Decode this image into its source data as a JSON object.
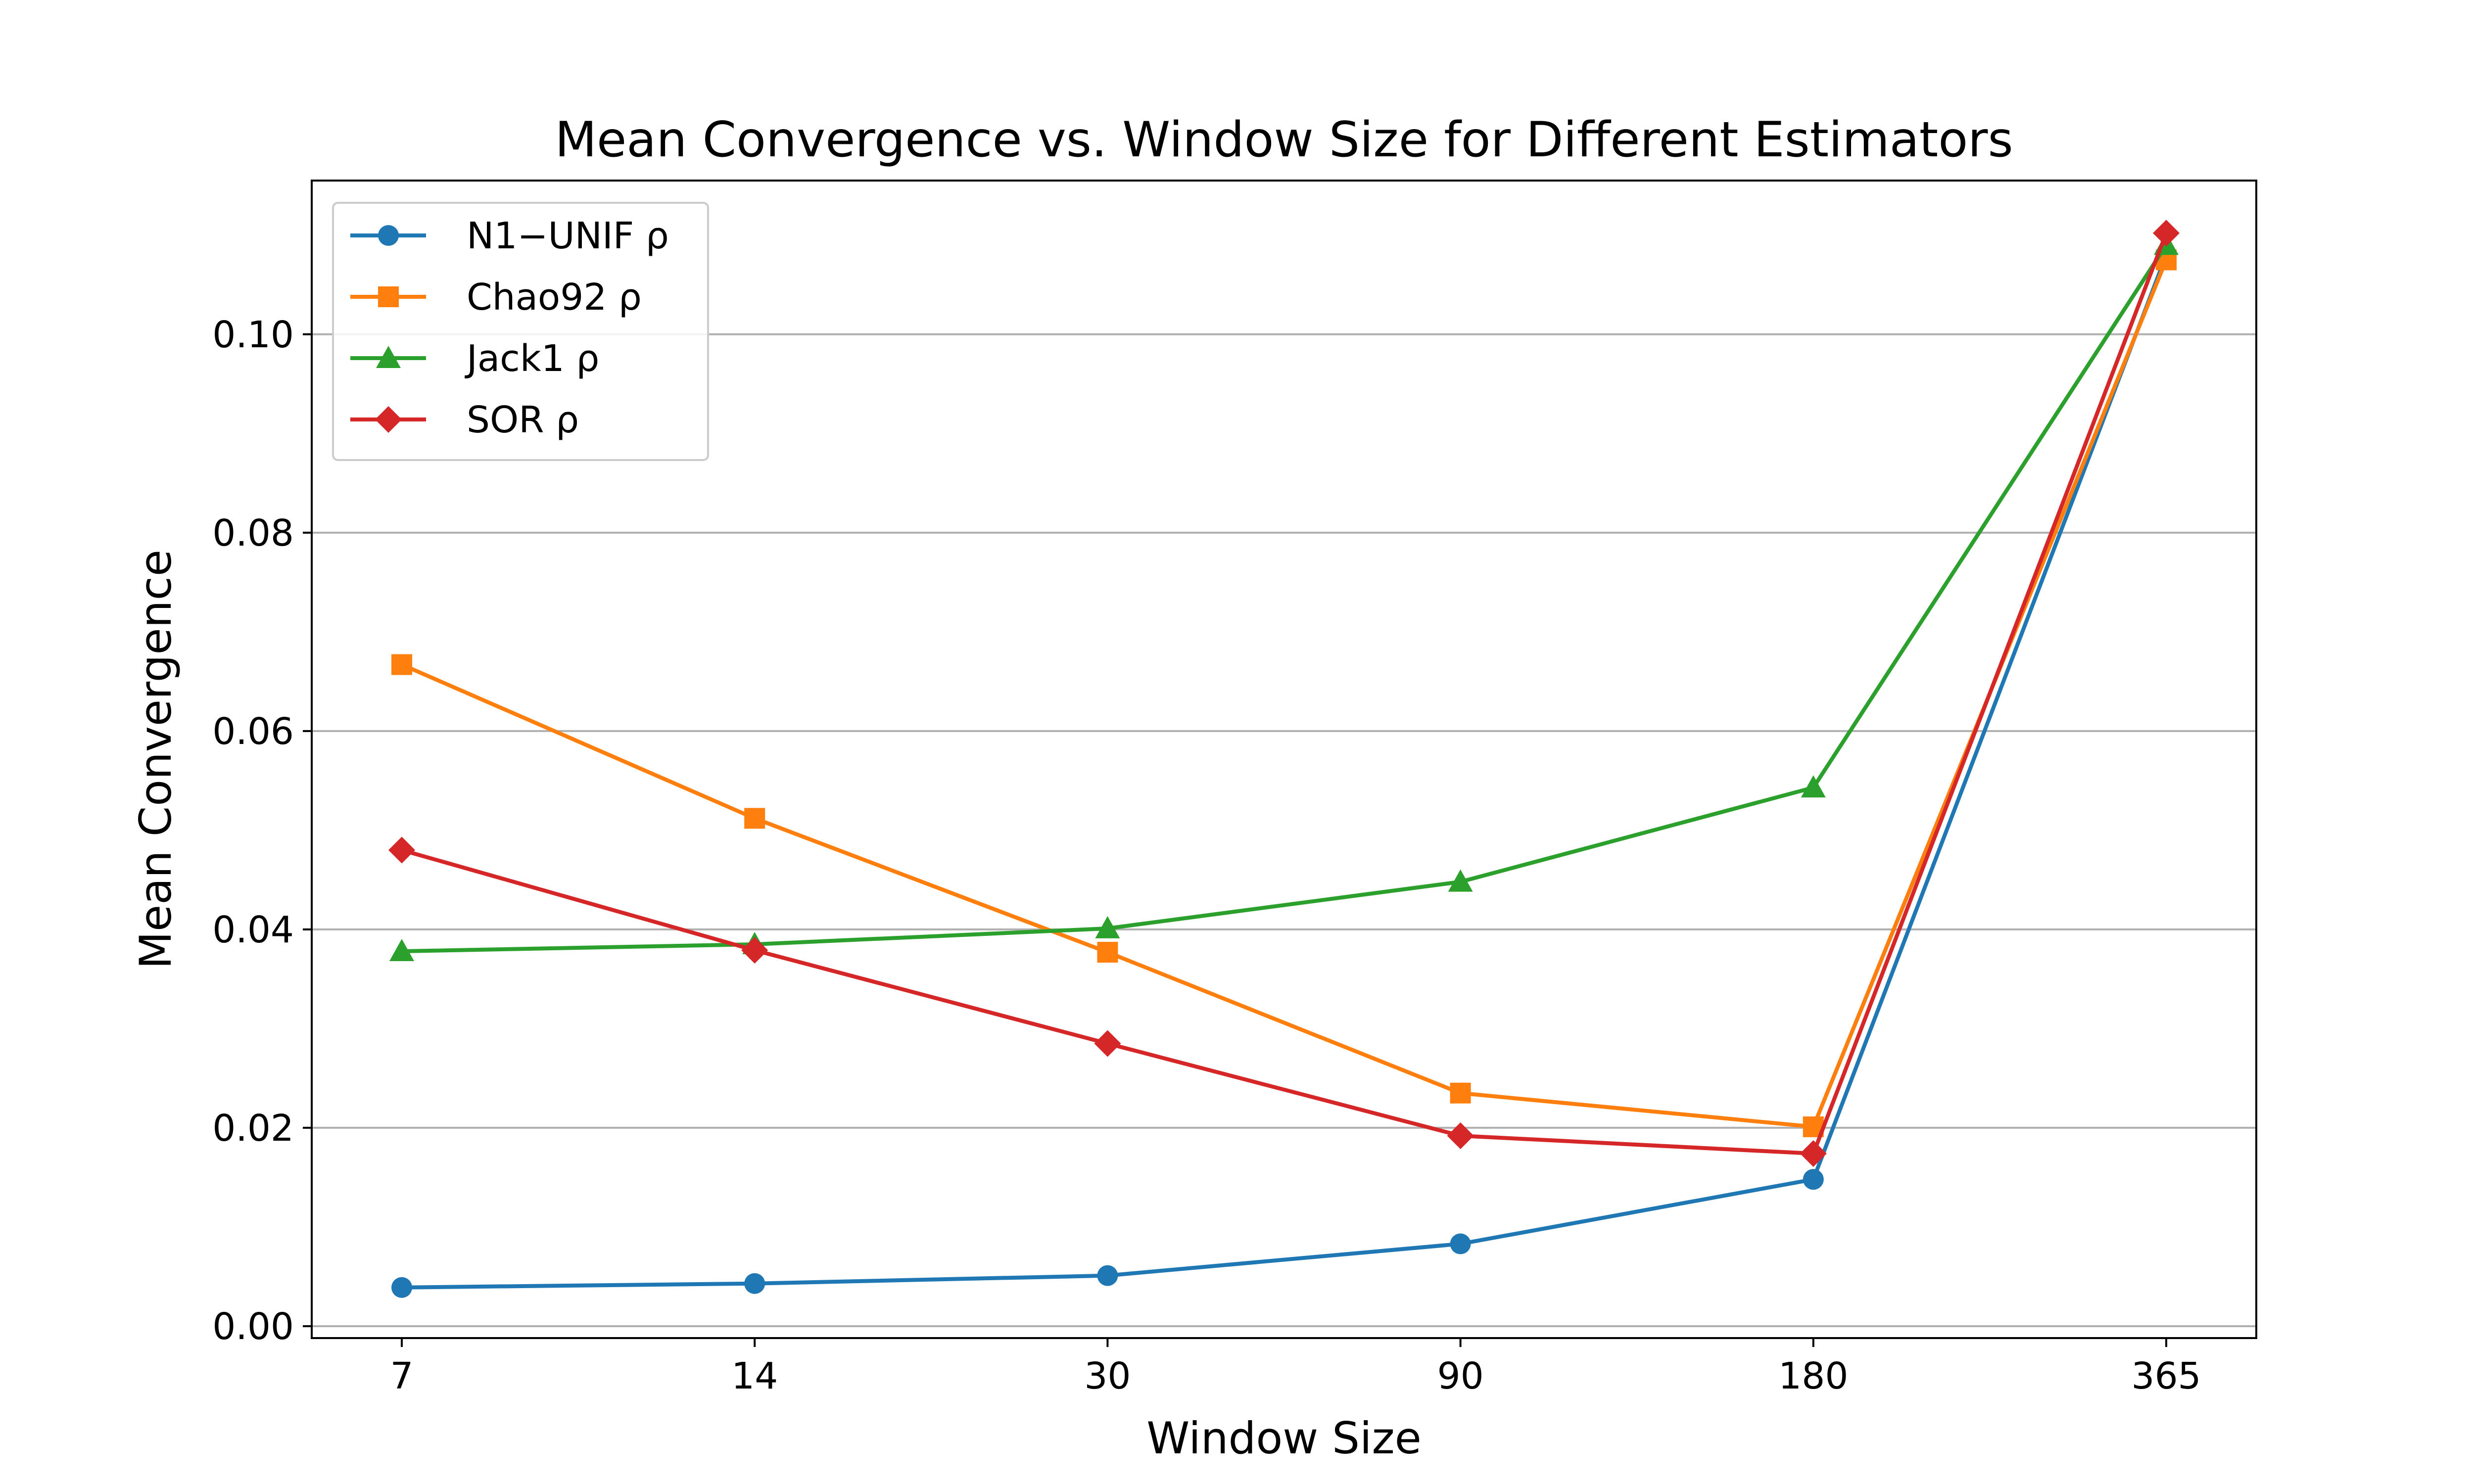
{
  "chart_data": {
    "type": "line",
    "title": "Mean Convergence vs. Window Size for Different Estimators",
    "xlabel": "Window Size",
    "ylabel": "Mean Convergence",
    "categories": [
      "7",
      "14",
      "30",
      "90",
      "180",
      "365"
    ],
    "ylim": [
      -0.0012,
      0.1155
    ],
    "yticks": [
      0.0,
      0.02,
      0.04,
      0.06,
      0.08,
      0.1
    ],
    "ytick_labels": [
      "0.00",
      "0.02",
      "0.04",
      "0.06",
      "0.08",
      "0.10"
    ],
    "grid": "y-major",
    "legend_position": "upper-left",
    "series": [
      {
        "name": "N1−UNIF ρ",
        "marker": "circle",
        "color": "#1f77b4",
        "values": [
          0.0039,
          0.0043,
          0.0051,
          0.0083,
          0.0148,
          0.108
        ]
      },
      {
        "name": "Chao92 ρ",
        "marker": "square",
        "color": "#ff7f0e",
        "values": [
          0.0667,
          0.0512,
          0.0377,
          0.0235,
          0.0201,
          0.1075
        ]
      },
      {
        "name": "Jack1 ρ",
        "marker": "triangle",
        "color": "#2ca02c",
        "values": [
          0.0378,
          0.0385,
          0.0401,
          0.0448,
          0.0543,
          0.109
        ]
      },
      {
        "name": "SOR ρ",
        "marker": "diamond",
        "color": "#d62728",
        "values": [
          0.048,
          0.0379,
          0.0285,
          0.0192,
          0.0174,
          0.1102
        ]
      }
    ]
  }
}
